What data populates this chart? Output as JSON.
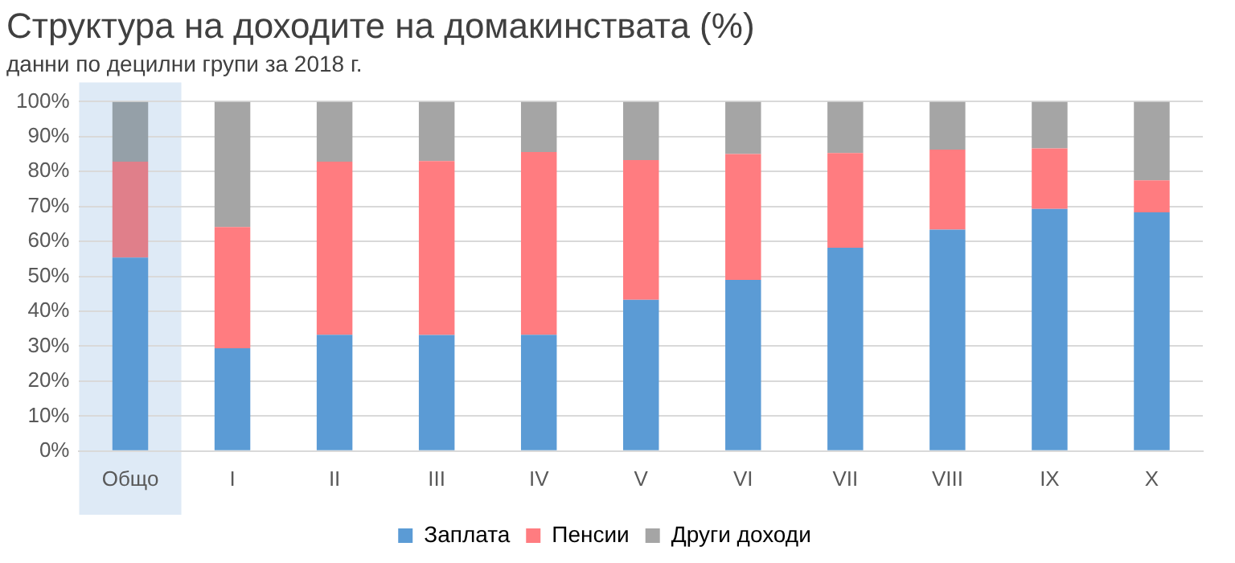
{
  "chart_data": {
    "type": "bar",
    "title": "Структура на доходите на домакинствата (%)",
    "subtitle": "данни по децилни групи за 2018 г.",
    "categories": [
      "Общо",
      "I",
      "II",
      "III",
      "IV",
      "V",
      "VI",
      "VII",
      "VIII",
      "IX",
      "X"
    ],
    "stacked": true,
    "series": [
      {
        "name": "Заплата",
        "color": "#5b9bd5",
        "colors": [
          "#5b9bd5",
          "#5b9bd5",
          "#5b9bd5",
          "#5b9bd5",
          "#5b9bd5",
          "#5b9bd5",
          "#5b9bd5",
          "#5b9bd5",
          "#5b9bd5",
          "#5b9bd5",
          "#5b9bd5"
        ],
        "values": [
          55.4,
          29.4,
          33.3,
          33.2,
          33.3,
          43.3,
          49.0,
          58.2,
          63.4,
          69.3,
          68.3
        ]
      },
      {
        "name": "Пенсии",
        "color": "#ff7c80",
        "colors": [
          "#e07f8a",
          "#ff7c80",
          "#ff7c80",
          "#ff7c80",
          "#ff7c80",
          "#ff7c80",
          "#ff7c80",
          "#ff7c80",
          "#ff7c80",
          "#ff7c80",
          "#ff7c80"
        ],
        "values": [
          27.4,
          34.7,
          49.5,
          49.8,
          52.3,
          40.0,
          36.0,
          27.1,
          22.9,
          17.3,
          9.2
        ]
      },
      {
        "name": "Други доходи",
        "color": "#a5a5a5",
        "colors": [
          "#95a0a8",
          "#a5a5a5",
          "#a5a5a5",
          "#a5a5a5",
          "#a5a5a5",
          "#a5a5a5",
          "#a5a5a5",
          "#a5a5a5",
          "#a5a5a5",
          "#a5a5a5",
          "#a5a5a5"
        ],
        "values": [
          17.2,
          35.9,
          17.2,
          17.0,
          14.4,
          16.7,
          15.0,
          14.7,
          13.7,
          13.4,
          22.5
        ]
      }
    ],
    "ylim": [
      0,
      100
    ],
    "yticks": [
      {
        "value": 0,
        "label": "0%"
      },
      {
        "value": 10,
        "label": "10%"
      },
      {
        "value": 20,
        "label": "20%"
      },
      {
        "value": 30,
        "label": "30%"
      },
      {
        "value": 40,
        "label": "40%"
      },
      {
        "value": 50,
        "label": "50%"
      },
      {
        "value": 60,
        "label": "60%"
      },
      {
        "value": 70,
        "label": "70%"
      },
      {
        "value": 80,
        "label": "80%"
      },
      {
        "value": 90,
        "label": "90%"
      },
      {
        "value": 100,
        "label": "100%"
      }
    ],
    "bands": [
      {
        "axis": "x",
        "from": "Общо",
        "to": "Общо",
        "color": "#deeaf6"
      }
    ],
    "grid": "y",
    "legend": "bottom"
  }
}
